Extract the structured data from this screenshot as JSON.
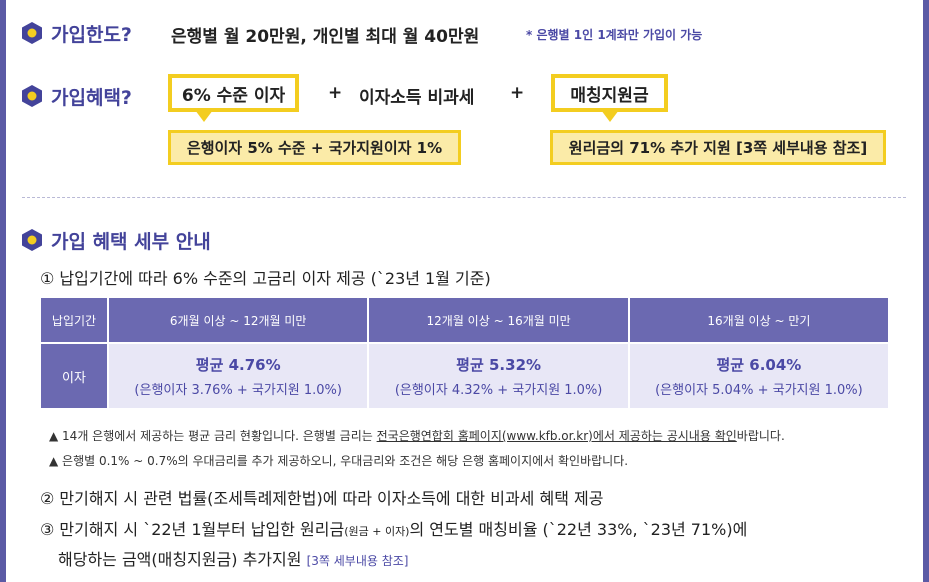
{
  "limit": {
    "heading": "가입한도?",
    "text": "은행별 월 20만원, 개인별 최대 월 40만원",
    "note": "* 은행별 1인 1계좌만 가입이 가능"
  },
  "benefit": {
    "heading": "가입혜택?",
    "box1": "6% 수준 이자",
    "plus1": "+",
    "box2": "이자소득 비과세",
    "plus2": "+",
    "box3": "매칭지원금",
    "pill1": "은행이자 5% 수준 + 국가지원이자 1%",
    "pill2": "원리금의 71% 추가 지원 [3쪽 세부내용 참조]"
  },
  "detail": {
    "heading": "가입 혜택 세부 안내",
    "item1": "① 납입기간에 따라 6% 수준의 고금리 이자 제공 (`23년 1월 기준)",
    "table": {
      "header_label": "납입기간",
      "columns": [
        "6개월 이상 ~ 12개월 미만",
        "12개월 이상 ~ 16개월 미만",
        "16개월 이상 ~ 만기"
      ],
      "row_label": "이자",
      "cells": [
        {
          "main": "평균 4.76%",
          "sub": "(은행이자 3.76% + 국가지원 1.0%)"
        },
        {
          "main": "평균 5.32%",
          "sub": "(은행이자 4.32% + 국가지원 1.0%)"
        },
        {
          "main": "평균 6.04%",
          "sub": "(은행이자 5.04% + 국가지원 1.0%)"
        }
      ]
    },
    "note1_pre": "▲ 14개 은행에서 제공하는 평균 금리 현황입니다. 은행별 금리는 ",
    "note1_link": "전국은행연합회 홈페이지(www.kfb.or.kr)에서 제공하는 공시내용 확인",
    "note1_post": "바랍니다.",
    "note2": "▲ 은행별 0.1% ~ 0.7%의 우대금리를 추가 제공하오니, 우대금리와 조건은 해당 은행 홈페이지에서 확인바랍니다.",
    "item2": "② 만기해지 시 관련 법률(조세특례제한법)에 따라 이자소득에 대한 비과세 혜택 제공",
    "item3_a": "③ 만기해지 시 `22년 1월부터 납입한 원리금",
    "item3_small": "(원금 + 이자)",
    "item3_b": "의 연도별 매칭비율 (`22년 33%, `23년 71%)에",
    "item3_line2": "해당하는 금액(매칭지원금) 추가지원",
    "item3_ref": "[3쪽 세부내용 참조]"
  },
  "colors": {
    "accent": "#43439a",
    "table_header": "#6b69b1",
    "highlight": "#f3cd20",
    "pill_fill": "#fbeba8"
  }
}
